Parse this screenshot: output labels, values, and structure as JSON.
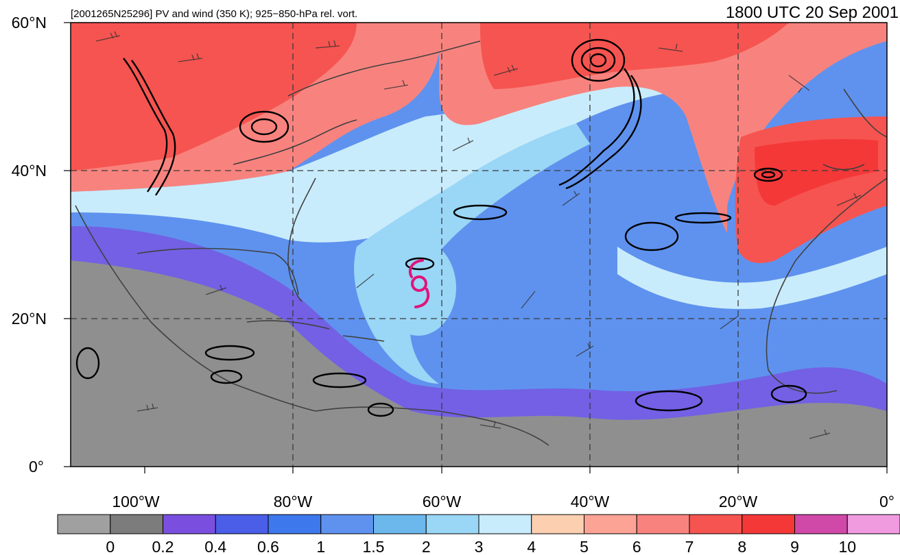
{
  "header": {
    "left_title": "[2001265N25296] PV and wind (350 K); 925−850-hPa rel. vort.",
    "right_title": "1800 UTC 20 Sep 2001"
  },
  "map": {
    "lon_range": [
      -110,
      0
    ],
    "lat_range": [
      0,
      60
    ],
    "lat_labels": [
      "0°",
      "20°N",
      "40°N",
      "60°N"
    ],
    "lon_labels": [
      "100°W",
      "80°W",
      "60°W",
      "40°W",
      "20°W",
      "0°"
    ],
    "storm_symbol": "tropical-cyclone-icon",
    "storm_position": {
      "lon": -63,
      "lat": 25
    },
    "storm_color": "#e0147a"
  },
  "colorbar": {
    "labels": [
      "0",
      "0.2",
      "0.4",
      "0.6",
      "1",
      "1.5",
      "2",
      "3",
      "4",
      "5",
      "6",
      "7",
      "8",
      "9",
      "10"
    ],
    "colors": [
      "#a0a0a0",
      "#7c7c7c",
      "#7a4fe0",
      "#4a5ee8",
      "#3d78ec",
      "#5f92ee",
      "#6cb8ec",
      "#9ad6f6",
      "#c9ecfc",
      "#fccfb0",
      "#fca396",
      "#f8837e",
      "#f65450",
      "#f43838",
      "#d048a8",
      "#f09ae0"
    ]
  }
}
